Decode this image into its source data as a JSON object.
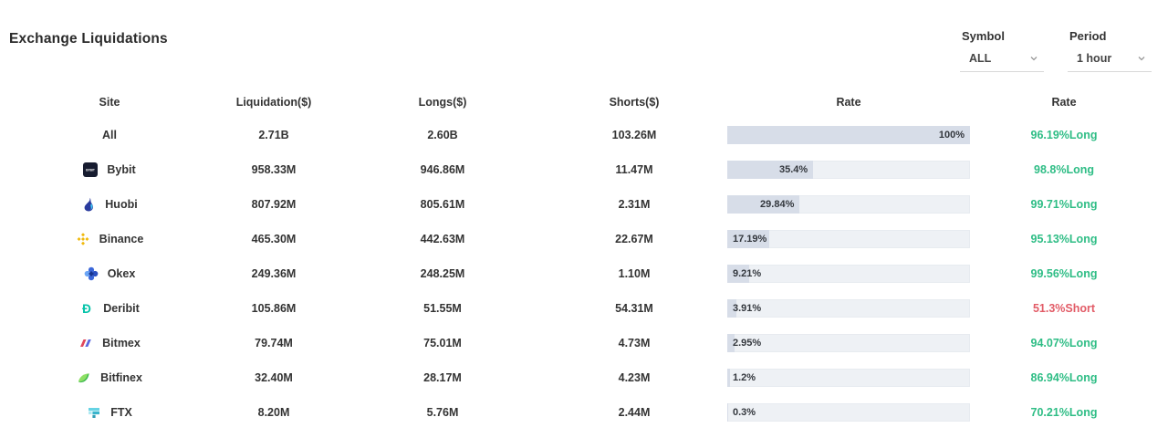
{
  "header": {
    "title": "Exchange Liquidations",
    "symbol": {
      "label": "Symbol",
      "value": "ALL"
    },
    "period": {
      "label": "Period",
      "value": "1 hour"
    }
  },
  "table": {
    "columns": [
      "Site",
      "Liquidation($)",
      "Longs($)",
      "Shorts($)",
      "Rate",
      "Rate"
    ],
    "rows": [
      {
        "site": "All",
        "icon": null,
        "liquidation": "2.71B",
        "longs": "2.60B",
        "shorts": "103.26M",
        "rate_bar_label": "100%",
        "rate_bar_pct": 100,
        "rate": "96.19%Long",
        "rate_side": "long"
      },
      {
        "site": "Bybit",
        "icon": "bybit-icon",
        "liquidation": "958.33M",
        "longs": "946.86M",
        "shorts": "11.47M",
        "rate_bar_label": "35.4%",
        "rate_bar_pct": 35.4,
        "rate": "98.8%Long",
        "rate_side": "long"
      },
      {
        "site": "Huobi",
        "icon": "huobi-icon",
        "liquidation": "807.92M",
        "longs": "805.61M",
        "shorts": "2.31M",
        "rate_bar_label": "29.84%",
        "rate_bar_pct": 29.84,
        "rate": "99.71%Long",
        "rate_side": "long"
      },
      {
        "site": "Binance",
        "icon": "binance-icon",
        "liquidation": "465.30M",
        "longs": "442.63M",
        "shorts": "22.67M",
        "rate_bar_label": "17.19%",
        "rate_bar_pct": 17.19,
        "rate": "95.13%Long",
        "rate_side": "long"
      },
      {
        "site": "Okex",
        "icon": "okex-icon",
        "liquidation": "249.36M",
        "longs": "248.25M",
        "shorts": "1.10M",
        "rate_bar_label": "9.21%",
        "rate_bar_pct": 9.21,
        "rate": "99.56%Long",
        "rate_side": "long"
      },
      {
        "site": "Deribit",
        "icon": "deribit-icon",
        "liquidation": "105.86M",
        "longs": "51.55M",
        "shorts": "54.31M",
        "rate_bar_label": "3.91%",
        "rate_bar_pct": 3.91,
        "rate": "51.3%Short",
        "rate_side": "short"
      },
      {
        "site": "Bitmex",
        "icon": "bitmex-icon",
        "liquidation": "79.74M",
        "longs": "75.01M",
        "shorts": "4.73M",
        "rate_bar_label": "2.95%",
        "rate_bar_pct": 2.95,
        "rate": "94.07%Long",
        "rate_side": "long"
      },
      {
        "site": "Bitfinex",
        "icon": "bitfinex-icon",
        "liquidation": "32.40M",
        "longs": "28.17M",
        "shorts": "4.23M",
        "rate_bar_label": "1.2%",
        "rate_bar_pct": 1.2,
        "rate": "86.94%Long",
        "rate_side": "long"
      },
      {
        "site": "FTX",
        "icon": "ftx-icon",
        "liquidation": "8.20M",
        "longs": "5.76M",
        "shorts": "2.44M",
        "rate_bar_label": "0.3%",
        "rate_bar_pct": 0.3,
        "rate": "70.21%Long",
        "rate_side": "long"
      }
    ]
  },
  "colors": {
    "long": "#2ebd85",
    "short": "#e25c67",
    "bar_fill": "#d7dde8",
    "bar_track": "#eef1f5"
  }
}
